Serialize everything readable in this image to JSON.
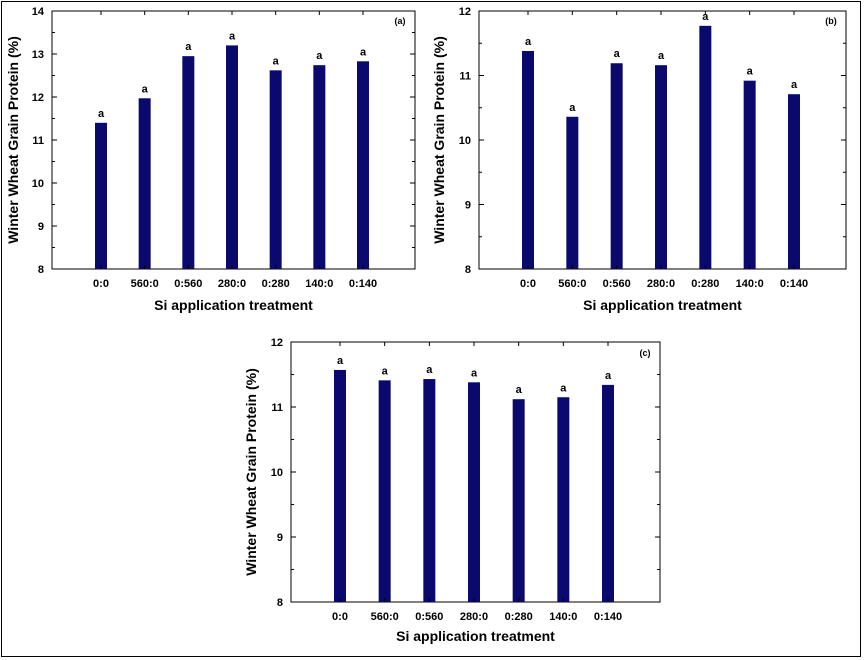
{
  "chart_data": [
    {
      "type": "bar",
      "panel_label": "(a)",
      "categories": [
        "0:0",
        "560:0",
        "0:560",
        "280:0",
        "0:280",
        "140:0",
        "0:140"
      ],
      "values": [
        11.4,
        11.97,
        12.95,
        13.2,
        12.62,
        12.74,
        12.83
      ],
      "significance": [
        "a",
        "a",
        "a",
        "a",
        "a",
        "a",
        "a"
      ],
      "xlabel": "Si application treatment",
      "ylabel": "Winter Wheat Grain Protein (%)",
      "ylim": [
        8,
        14
      ],
      "yticks": [
        8,
        9,
        10,
        11,
        12,
        13,
        14
      ],
      "bar_color": "#0a0a6e"
    },
    {
      "type": "bar",
      "panel_label": "(b)",
      "categories": [
        "0:0",
        "560:0",
        "0:560",
        "280:0",
        "0:280",
        "140:0",
        "0:140"
      ],
      "values": [
        11.38,
        10.36,
        11.19,
        11.16,
        11.77,
        10.92,
        10.71
      ],
      "significance": [
        "a",
        "a",
        "a",
        "a",
        "a",
        "a",
        "a"
      ],
      "xlabel": "Si application treatment",
      "ylabel": "Winter Wheat Grain Protein (%)",
      "ylim": [
        8,
        12
      ],
      "yticks": [
        8,
        9,
        10,
        11,
        12
      ],
      "bar_color": "#0a0a6e"
    },
    {
      "type": "bar",
      "panel_label": "(c)",
      "categories": [
        "0:0",
        "560:0",
        "0:560",
        "280:0",
        "0:280",
        "140:0",
        "0:140"
      ],
      "values": [
        11.57,
        11.41,
        11.43,
        11.38,
        11.12,
        11.15,
        11.34
      ],
      "significance": [
        "a",
        "a",
        "a",
        "a",
        "a",
        "a",
        "a"
      ],
      "xlabel": "Si application treatment",
      "ylabel": "Winter Wheat Grain Protein (%)",
      "ylim": [
        8,
        12
      ],
      "yticks": [
        8,
        9,
        10,
        11,
        12
      ],
      "bar_color": "#0a0a6e"
    }
  ]
}
